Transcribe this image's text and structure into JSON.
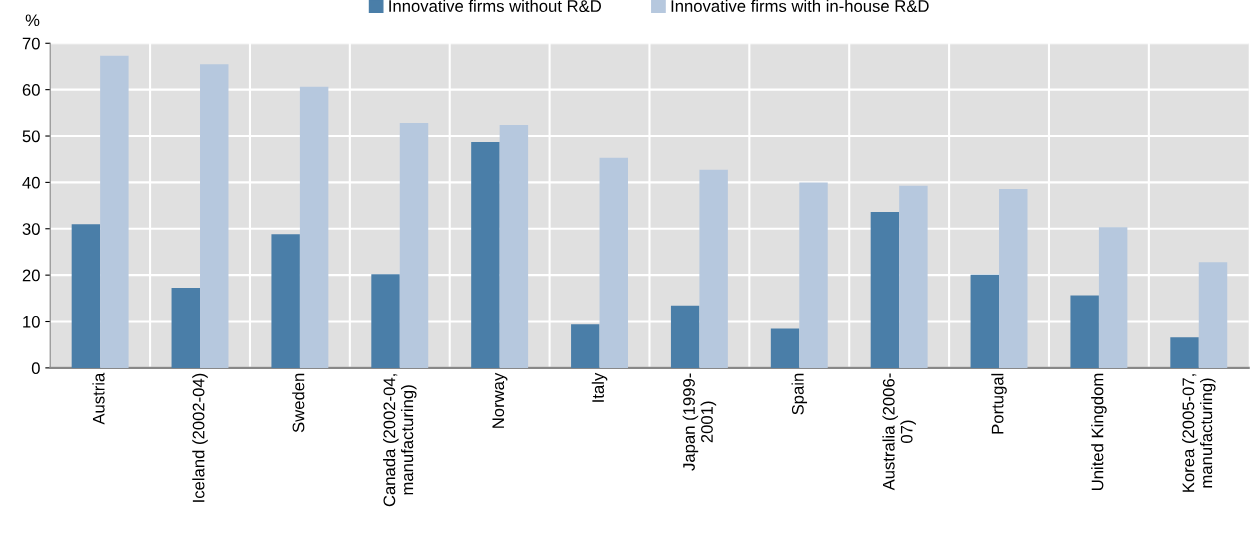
{
  "chart_data": {
    "type": "bar",
    "ylabel": "%",
    "categories": [
      "Austria",
      "Iceland (2002-04)",
      "Sweden",
      "Canada (2002-04,\nmanufacturing)",
      "Norway",
      "Italy",
      "Japan (1999-\n2001)",
      "Spain",
      "Australia (2006-\n07)",
      "Portugal",
      "United Kingdom",
      "Korea (2005-07,\nmanufacturing)"
    ],
    "series": [
      {
        "name": "Innovative firms without R&D",
        "color": "#4a7ea8",
        "values": [
          31.0,
          17.2,
          28.8,
          20.2,
          48.7,
          9.4,
          13.4,
          8.5,
          33.6,
          20.1,
          15.6,
          6.6
        ]
      },
      {
        "name": "Innovative firms with in-house R&D",
        "color": "#b6c8de",
        "values": [
          67.3,
          65.5,
          60.6,
          52.8,
          52.4,
          45.3,
          42.7,
          40.0,
          39.3,
          38.6,
          30.3,
          22.8
        ]
      }
    ],
    "ylim": [
      0,
      70
    ],
    "yticks": [
      0,
      10,
      20,
      30,
      40,
      50,
      60,
      70
    ],
    "grid": true,
    "legend": "top"
  }
}
